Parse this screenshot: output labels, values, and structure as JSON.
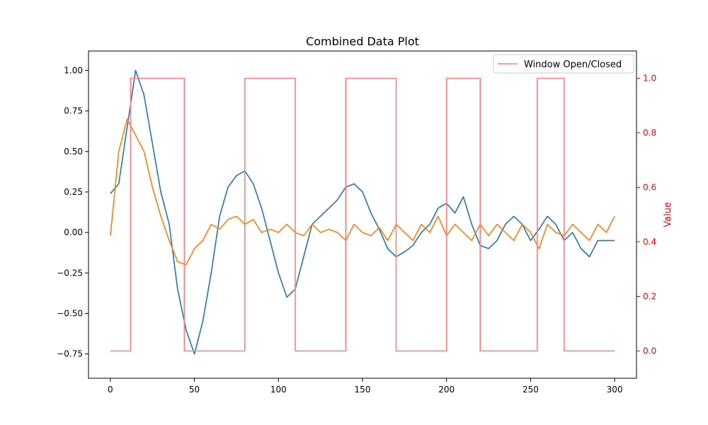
{
  "chart_data": {
    "type": "line",
    "title": "Combined Data Plot",
    "xlabel": "",
    "ylabel_left": "",
    "ylabel_right": "Value",
    "xlim": [
      -13,
      313
    ],
    "ylim_left": [
      -0.9,
      1.12
    ],
    "ylim_right": [
      -0.1,
      1.1
    ],
    "x_ticks": [
      0,
      50,
      100,
      150,
      200,
      250,
      300
    ],
    "y_left_ticks": [
      -0.75,
      -0.5,
      -0.25,
      0.0,
      0.25,
      0.5,
      0.75,
      1.0
    ],
    "y_left_tick_labels": [
      "−0.75",
      "−0.50",
      "−0.25",
      "0.00",
      "0.25",
      "0.50",
      "0.75",
      "1.00"
    ],
    "y_right_ticks": [
      0.0,
      0.2,
      0.4,
      0.6,
      0.8,
      1.0
    ],
    "y_right_tick_labels": [
      "0.0",
      "0.2",
      "0.4",
      "0.6",
      "0.8",
      "1.0"
    ],
    "right_axis_color": "#ff0000",
    "grid": false,
    "legend_position": "upper-right",
    "series": [
      {
        "axis": "left",
        "color": "#1f77b4",
        "x": [
          0,
          5,
          10,
          15,
          20,
          25,
          30,
          35,
          40,
          45,
          50,
          55,
          60,
          65,
          70,
          75,
          80,
          85,
          90,
          95,
          100,
          105,
          110,
          115,
          120,
          125,
          130,
          135,
          140,
          145,
          150,
          155,
          160,
          165,
          170,
          175,
          180,
          185,
          190,
          195,
          200,
          205,
          210,
          215,
          220,
          225,
          230,
          235,
          240,
          245,
          250,
          255,
          260,
          265,
          270,
          275,
          280,
          285,
          290,
          295,
          300
        ],
        "y": [
          0.24,
          0.3,
          0.65,
          1.0,
          0.85,
          0.55,
          0.25,
          0.05,
          -0.35,
          -0.6,
          -0.75,
          -0.55,
          -0.25,
          0.1,
          0.28,
          0.35,
          0.38,
          0.3,
          0.15,
          -0.05,
          -0.25,
          -0.4,
          -0.35,
          -0.15,
          0.05,
          0.1,
          0.15,
          0.2,
          0.28,
          0.3,
          0.25,
          0.12,
          0.02,
          -0.1,
          -0.15,
          -0.12,
          -0.08,
          0.0,
          0.05,
          0.15,
          0.18,
          0.12,
          0.22,
          0.05,
          -0.08,
          -0.1,
          -0.05,
          0.05,
          0.1,
          0.05,
          -0.05,
          0.02,
          0.1,
          0.05,
          -0.05,
          0.0,
          -0.1,
          -0.15,
          -0.05,
          -0.05,
          -0.05
        ]
      },
      {
        "axis": "left",
        "color": "#ff7f0e",
        "x": [
          0,
          5,
          10,
          15,
          20,
          25,
          30,
          35,
          40,
          45,
          50,
          55,
          60,
          65,
          70,
          75,
          80,
          85,
          90,
          95,
          100,
          105,
          110,
          115,
          120,
          125,
          130,
          135,
          140,
          145,
          150,
          155,
          160,
          165,
          170,
          175,
          180,
          185,
          190,
          195,
          200,
          205,
          210,
          215,
          220,
          225,
          230,
          235,
          240,
          245,
          250,
          255,
          260,
          265,
          270,
          275,
          280,
          285,
          290,
          295,
          300
        ],
        "y": [
          -0.02,
          0.5,
          0.7,
          0.6,
          0.5,
          0.28,
          0.1,
          -0.05,
          -0.18,
          -0.2,
          -0.1,
          -0.05,
          0.05,
          0.02,
          0.08,
          0.1,
          0.05,
          0.08,
          0.0,
          0.02,
          0.0,
          0.05,
          0.0,
          -0.02,
          0.05,
          0.0,
          0.02,
          0.0,
          -0.05,
          0.05,
          0.0,
          -0.02,
          0.03,
          -0.05,
          0.05,
          0.0,
          -0.05,
          0.05,
          0.0,
          0.1,
          -0.02,
          0.05,
          0.0,
          -0.05,
          0.05,
          -0.02,
          0.05,
          0.0,
          -0.05,
          0.05,
          0.0,
          -0.1,
          0.05,
          0.0,
          -0.02,
          0.05,
          0.0,
          -0.05,
          0.05,
          0.0,
          0.1
        ]
      },
      {
        "axis": "right",
        "name": "Window Open/Closed",
        "color": "#ff7f7f",
        "x": [
          0,
          12,
          12,
          44,
          44,
          80,
          80,
          110,
          110,
          140,
          140,
          170,
          170,
          200,
          200,
          220,
          220,
          254,
          254,
          270,
          270,
          300
        ],
        "y": [
          0,
          0,
          1,
          1,
          0,
          0,
          1,
          1,
          0,
          0,
          1,
          1,
          0,
          0,
          1,
          1,
          0,
          0,
          1,
          1,
          0,
          0
        ]
      }
    ]
  }
}
